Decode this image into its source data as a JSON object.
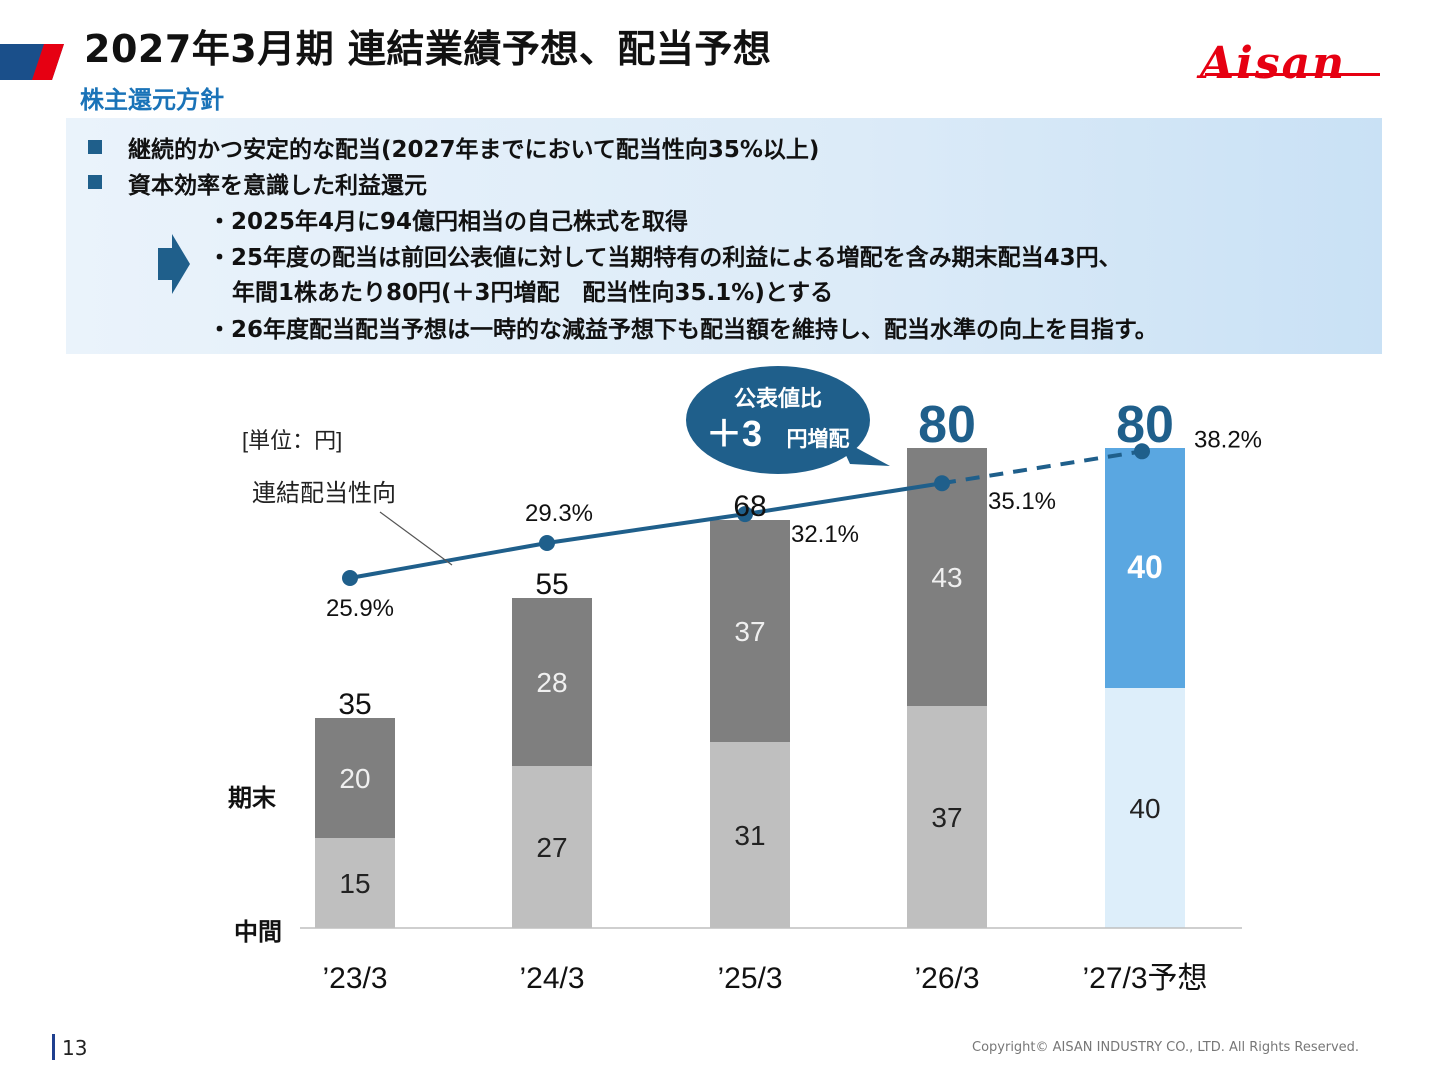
{
  "header": {
    "title": "2027年3月期 連結業績予想、配当予想",
    "subtitle": "株主還元方針",
    "logo": "Aisan"
  },
  "policy": {
    "bullet1": "継続的かつ安定的な配当(2027年までにおいて配当性向35%以上)",
    "bullet2": "資本効率を意識した利益還元",
    "sub1": "・2025年4月に94億円相当の自己株式を取得",
    "sub2a": "・25年度の配当は前回公表値に対して当期特有の利益による増配を含み期末配当43円、",
    "sub2b": "年間1株あたり80円(＋3円増配　配当性向35.1%)とする",
    "sub3": "・26年度配当配当予想は一時的な減益予想下も配当額を維持し、配当水準の向上を目指す。"
  },
  "callout": {
    "line1": "公表値比",
    "line2a": "＋3",
    "line2b": "円増配"
  },
  "colors": {
    "interim": "#bfbfbf",
    "year_end": "#7f7f7f",
    "forecast_interim": "#ddeefa",
    "forecast_year_end": "#5aa7e1",
    "payout_line": "#1f5f8b",
    "accent": "#1f5f8b"
  },
  "chart_data": {
    "type": "bar",
    "stacked": true,
    "categories": [
      "’23/3",
      "’24/3",
      "’25/3",
      "’26/3",
      "’27/3予想"
    ],
    "unit_label": "[単位：円]",
    "series": [
      {
        "name": "中間",
        "values": [
          15,
          27,
          31,
          37,
          40
        ]
      },
      {
        "name": "期末",
        "values": [
          20,
          28,
          37,
          43,
          40
        ]
      }
    ],
    "totals": [
      35,
      55,
      68,
      80,
      80
    ],
    "payout_ratio": {
      "name": "連結配当性向",
      "values": [
        25.9,
        29.3,
        32.1,
        35.1,
        38.2
      ],
      "labels": [
        "25.9%",
        "29.3%",
        "32.1%",
        "35.1%",
        "38.2%"
      ],
      "forecast_from_index": 3
    },
    "ylim": [
      0,
      90
    ],
    "forecast_index": 4
  },
  "footer": {
    "page": "13",
    "copyright": "Copyright© AISAN INDUSTRY CO., LTD. All Rights Reserved."
  }
}
